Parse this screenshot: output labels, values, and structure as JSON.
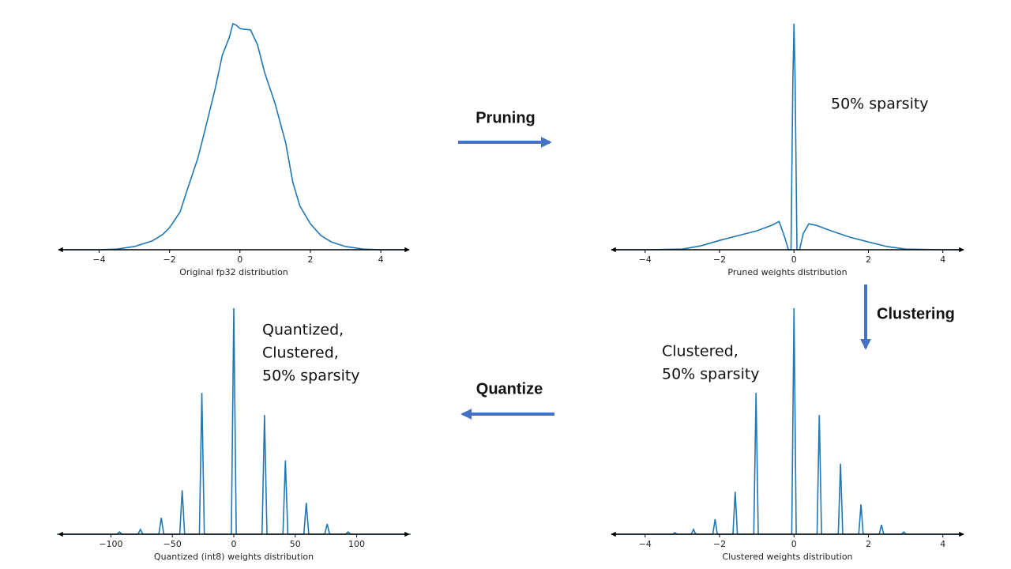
{
  "chart_data": [
    {
      "type": "line",
      "xlabel": "Original fp32 distribution",
      "color": "#1f77b4",
      "x": [
        -5,
        -4,
        -3.5,
        -3,
        -2.5,
        -2.2,
        -2,
        -1.7,
        -1.5,
        -1.2,
        -1,
        -0.7,
        -0.5,
        -0.3,
        -0.2,
        -0.1,
        0,
        0.1,
        0.3,
        0.5,
        0.7,
        1,
        1.3,
        1.5,
        1.7,
        2,
        2.3,
        2.6,
        3,
        3.5,
        4,
        4.8
      ],
      "values": [
        0,
        0,
        0.003,
        0.014,
        0.038,
        0.066,
        0.097,
        0.166,
        0.262,
        0.4,
        0.521,
        0.71,
        0.855,
        0.934,
        0.993,
        0.986,
        0.972,
        0.969,
        0.966,
        0.9,
        0.779,
        0.641,
        0.469,
        0.297,
        0.193,
        0.114,
        0.062,
        0.034,
        0.014,
        0.003,
        0,
        0
      ],
      "xlim": [
        -5.2,
        4.85
      ],
      "ylim": [
        0,
        1
      ],
      "xticks": [
        {
          "value": -4,
          "label": "−4"
        },
        {
          "value": -2,
          "label": "−2"
        },
        0,
        2,
        4
      ]
    },
    {
      "type": "line",
      "xlabel": "Pruned weights distribution",
      "color": "#1f77b4",
      "annotation": [
        "50% sparsity"
      ],
      "x": [
        -4.9,
        -4,
        -3,
        -2.5,
        -2,
        -1.5,
        -1,
        -0.6,
        -0.4,
        -0.25,
        -0.15,
        -0.08,
        -0.03,
        0,
        0.03,
        0.08,
        0.15,
        0.25,
        0.4,
        0.6,
        1,
        1.5,
        2,
        2.5,
        3,
        4,
        4.55
      ],
      "values": [
        0,
        0,
        0.003,
        0.017,
        0.041,
        0.062,
        0.083,
        0.107,
        0.124,
        0.055,
        0,
        0,
        0.745,
        0.993,
        0.745,
        0,
        0,
        0.072,
        0.114,
        0.107,
        0.083,
        0.055,
        0.034,
        0.014,
        0.003,
        0,
        0
      ],
      "xlim": [
        -4.95,
        4.6
      ],
      "ylim": [
        0,
        1
      ],
      "xticks": [
        {
          "value": -4,
          "label": "−4"
        },
        {
          "value": -2,
          "label": "−2"
        },
        0,
        2,
        4
      ]
    },
    {
      "type": "line",
      "xlabel": "Quantized (int8) weights distribution",
      "color": "#1f77b4",
      "annotation": [
        "Quantized,",
        "Clustered,",
        "50% sparsity"
      ],
      "x": [
        -144,
        -95,
        -93,
        -91,
        -78,
        -76,
        -74,
        -61,
        -59,
        -57,
        -44,
        -42,
        -40,
        -28,
        -26,
        -24,
        -2,
        0,
        2,
        23,
        25,
        27,
        40,
        42,
        44,
        57,
        59,
        61,
        74,
        76,
        78,
        91,
        93,
        95,
        144
      ],
      "values": [
        0,
        0,
        0.01,
        0,
        0,
        0.021,
        0,
        0,
        0.072,
        0,
        0,
        0.193,
        0,
        0,
        0.621,
        0,
        0,
        0.993,
        0,
        0,
        0.524,
        0,
        0,
        0.324,
        0,
        0,
        0.138,
        0,
        0,
        0.045,
        0,
        0,
        0.01,
        0,
        0
      ],
      "xlim": [
        -144,
        144
      ],
      "ylim": [
        0,
        1
      ],
      "xticks": [
        {
          "value": -100,
          "label": "−100"
        },
        {
          "value": -50,
          "label": "−50"
        },
        0,
        50,
        100
      ]
    },
    {
      "type": "line",
      "xlabel": "Clustered weights distribution",
      "color": "#1f77b4",
      "annotation": [
        "Clustered,",
        "50% sparsity"
      ],
      "x": [
        -4.9,
        -3.26,
        -3.2,
        -3.14,
        -2.76,
        -2.7,
        -2.64,
        -2.18,
        -2.12,
        -2.06,
        -1.64,
        -1.58,
        -1.52,
        -1.08,
        -1.02,
        -0.96,
        -0.06,
        0,
        0.06,
        0.62,
        0.68,
        0.74,
        1.19,
        1.25,
        1.31,
        1.74,
        1.8,
        1.86,
        2.29,
        2.35,
        2.41,
        2.89,
        2.95,
        3.01,
        4.55
      ],
      "values": [
        0,
        0,
        0.007,
        0,
        0,
        0.021,
        0,
        0,
        0.066,
        0,
        0,
        0.186,
        0,
        0,
        0.621,
        0,
        0,
        0.993,
        0,
        0,
        0.524,
        0,
        0,
        0.31,
        0,
        0,
        0.131,
        0,
        0,
        0.041,
        0,
        0,
        0.01,
        0,
        0
      ],
      "xlim": [
        -4.95,
        4.6
      ],
      "ylim": [
        0,
        1
      ],
      "xticks": [
        {
          "value": -4,
          "label": "−4"
        },
        {
          "value": -2,
          "label": "−2"
        },
        0,
        2,
        4
      ]
    }
  ],
  "steps": [
    {
      "label": "Pruning"
    },
    {
      "label": "Clustering"
    },
    {
      "label": "Quantize"
    }
  ]
}
